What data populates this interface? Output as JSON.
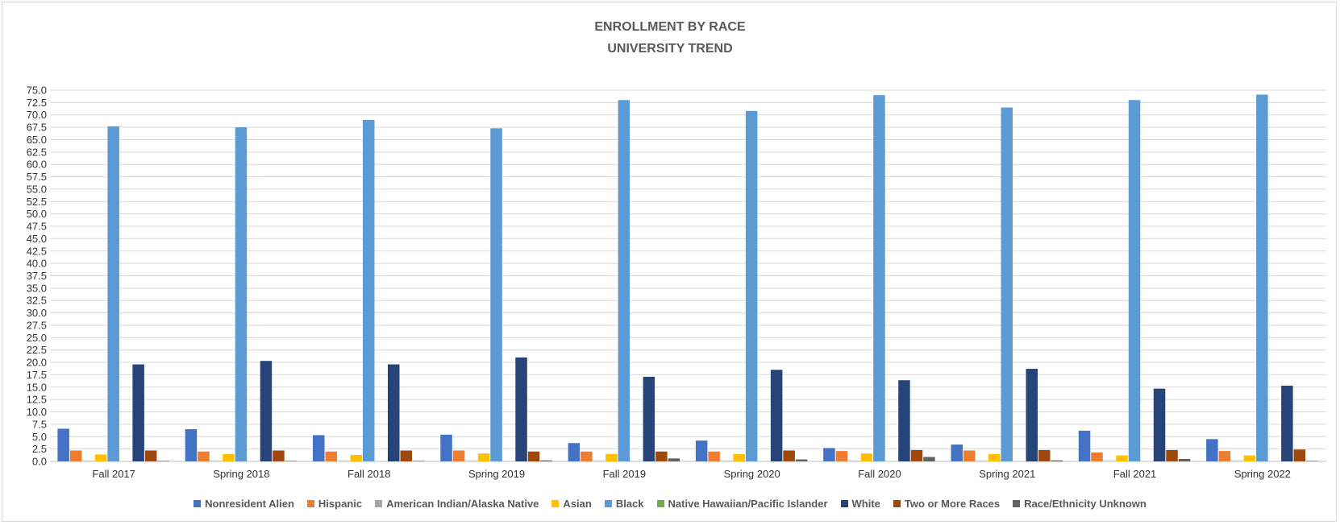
{
  "chart_data": {
    "type": "bar",
    "title": "ENROLLMENT BY RACE",
    "subtitle": "UNIVERSITY TREND",
    "xlabel": "",
    "ylabel": "",
    "ylim": [
      0,
      75
    ],
    "y_tick_step": 2.5,
    "grid": true,
    "legend_position": "bottom",
    "categories": [
      "Fall 2017",
      "Spring 2018",
      "Fall 2018",
      "Spring 2019",
      "Fall 2019",
      "Spring 2020",
      "Fall 2020",
      "Spring 2021",
      "Fall 2021",
      "Spring 2022"
    ],
    "series": [
      {
        "name": "Nonresident Alien",
        "color": "#4472c4",
        "values": [
          6.6,
          6.5,
          5.3,
          5.4,
          3.7,
          4.2,
          2.7,
          3.4,
          6.2,
          4.5
        ]
      },
      {
        "name": "Hispanic",
        "color": "#ed7d31",
        "values": [
          2.2,
          2.0,
          2.0,
          2.2,
          2.0,
          2.0,
          2.1,
          2.2,
          1.8,
          2.1
        ]
      },
      {
        "name": "American Indian/Alaska Native",
        "color": "#a5a5a5",
        "values": [
          0.1,
          0.1,
          0.1,
          0.1,
          0.1,
          0.1,
          0.1,
          0.1,
          0.1,
          0.1
        ]
      },
      {
        "name": "Asian",
        "color": "#ffc000",
        "values": [
          1.4,
          1.5,
          1.3,
          1.6,
          1.5,
          1.5,
          1.6,
          1.5,
          1.2,
          1.2
        ]
      },
      {
        "name": "Black",
        "color": "#5b9bd5",
        "values": [
          67.7,
          67.5,
          69.0,
          67.3,
          73.0,
          70.8,
          74.0,
          71.5,
          73.0,
          74.1
        ]
      },
      {
        "name": "Native Hawaiian/Pacific Islander",
        "color": "#70ad47",
        "values": [
          0.0,
          0.0,
          0.0,
          0.0,
          0.0,
          0.0,
          0.0,
          0.0,
          0.0,
          0.0
        ]
      },
      {
        "name": "White",
        "color": "#264478",
        "values": [
          19.6,
          20.3,
          19.6,
          21.0,
          17.1,
          18.5,
          16.4,
          18.7,
          14.7,
          15.3
        ]
      },
      {
        "name": "Two or More Races",
        "color": "#9e480e",
        "values": [
          2.2,
          2.2,
          2.2,
          2.0,
          2.0,
          2.2,
          2.3,
          2.3,
          2.3,
          2.4
        ]
      },
      {
        "name": "Race/Ethnicity Unknown",
        "color": "#636363",
        "values": [
          0.1,
          0.1,
          0.1,
          0.2,
          0.6,
          0.4,
          0.9,
          0.2,
          0.5,
          0.1
        ]
      }
    ]
  }
}
